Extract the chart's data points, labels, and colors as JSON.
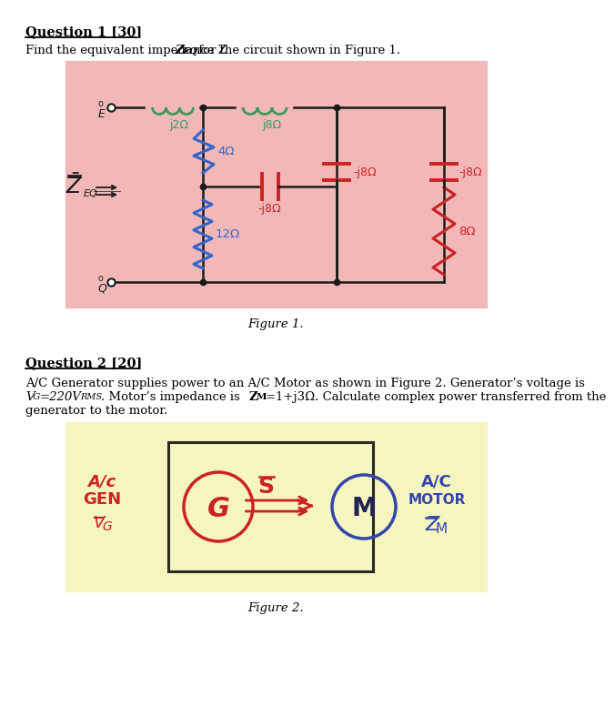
{
  "page_bg": "#ffffff",
  "q1_title": "Question 1 [30]",
  "q1_text": "Find the equivalent impedance Z",
  "q1_text2": "EQ",
  "q1_text3": " for the circuit shown in Figure 1.",
  "fig1_bg": "#f2b8b8",
  "fig1_caption": "Figure 1.",
  "q2_title": "Question 2 [20]",
  "q2_line1": "A/C Generator supplies power to an A/C Motor as shown in Figure 2. Generator’s voltage is",
  "q2_line2a": "V",
  "q2_line2b": "G",
  "q2_line2c": "=220V",
  "q2_line2d": "RMS",
  "q2_line2e": ". Motor’s impedance is Z",
  "q2_line2f": "M",
  "q2_line2g": "=1+j3Ω. Calculate complex power transferred from the",
  "q2_line3": "generator to the motor.",
  "fig2_bg": "#f5f5c0",
  "fig2_caption": "Figure 2.",
  "wc": "#1a1a1a",
  "gc": "#3a9a5c",
  "rc": "#cc2222",
  "bc": "#3366cc"
}
